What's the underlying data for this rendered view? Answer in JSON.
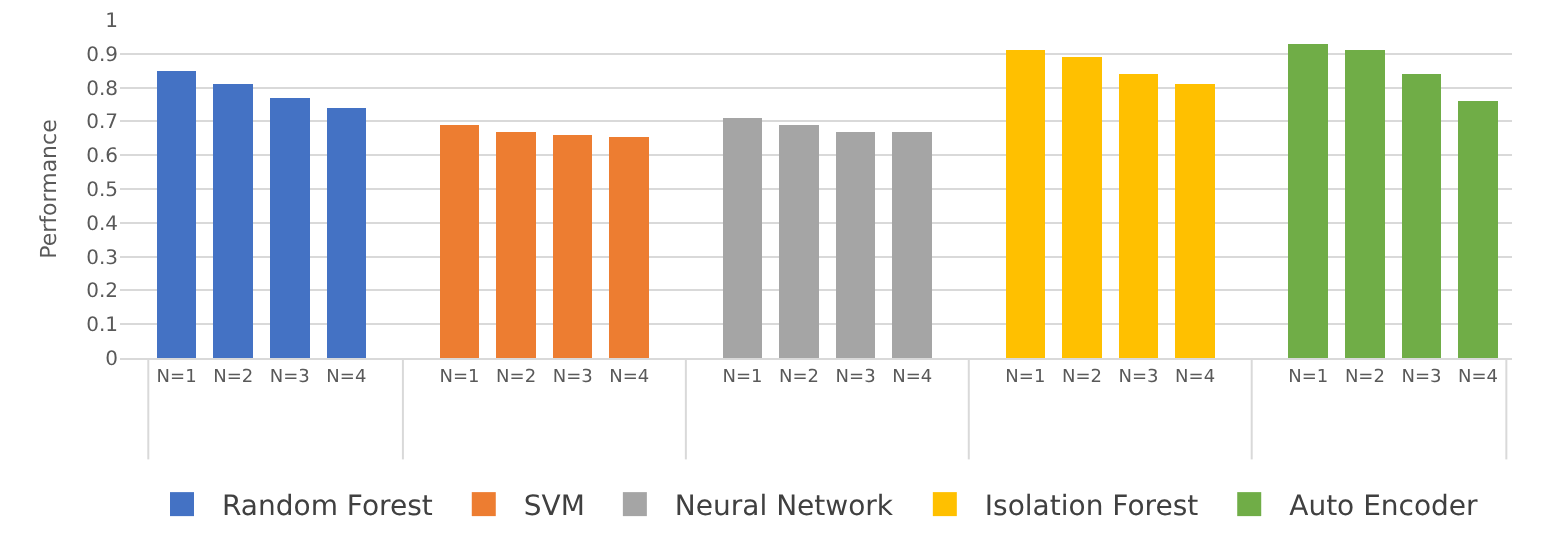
{
  "chart_data": {
    "type": "bar",
    "ylabel": "Performance",
    "categories": [
      "N=1",
      "N=2",
      "N=3",
      "N=4",
      "N=1",
      "N=2",
      "N=3",
      "N=4",
      "N=1",
      "N=2",
      "N=3",
      "N=4",
      "N=1",
      "N=2",
      "N=3",
      "N=4",
      "N=1",
      "N=2",
      "N=3",
      "N=4"
    ],
    "series": [
      {
        "name": "Random Forest",
        "color": "#4472c4",
        "values": [
          0.85,
          0.81,
          0.77,
          0.74,
          null,
          null,
          null,
          null,
          null,
          null,
          null,
          null,
          null,
          null,
          null,
          null,
          null,
          null,
          null,
          null
        ]
      },
      {
        "name": "SVM",
        "color": "#ed7d31",
        "values": [
          null,
          null,
          null,
          null,
          0.69,
          0.67,
          0.66,
          0.655,
          null,
          null,
          null,
          null,
          null,
          null,
          null,
          null,
          null,
          null,
          null,
          null
        ]
      },
      {
        "name": "Neural Network",
        "color": "#a5a5a5",
        "values": [
          null,
          null,
          null,
          null,
          null,
          null,
          null,
          null,
          0.71,
          0.69,
          0.67,
          0.67,
          null,
          null,
          null,
          null,
          null,
          null,
          null,
          null
        ]
      },
      {
        "name": "Isolation Forest",
        "color": "#ffc000",
        "values": [
          null,
          null,
          null,
          null,
          null,
          null,
          null,
          null,
          null,
          null,
          null,
          null,
          0.91,
          0.89,
          0.84,
          0.81,
          null,
          null,
          null,
          null
        ]
      },
      {
        "name": "Auto Encoder",
        "color": "#70ad47",
        "values": [
          null,
          null,
          null,
          null,
          null,
          null,
          null,
          null,
          null,
          null,
          null,
          null,
          null,
          null,
          null,
          null,
          0.93,
          0.91,
          0.84,
          0.76
        ]
      }
    ],
    "ylim": [
      0,
      1
    ],
    "yticks": [
      0,
      0.1,
      0.2,
      0.3,
      0.4,
      0.5,
      0.6,
      0.7,
      0.8,
      0.9,
      1
    ],
    "grid": "y",
    "legend": "bottom"
  }
}
